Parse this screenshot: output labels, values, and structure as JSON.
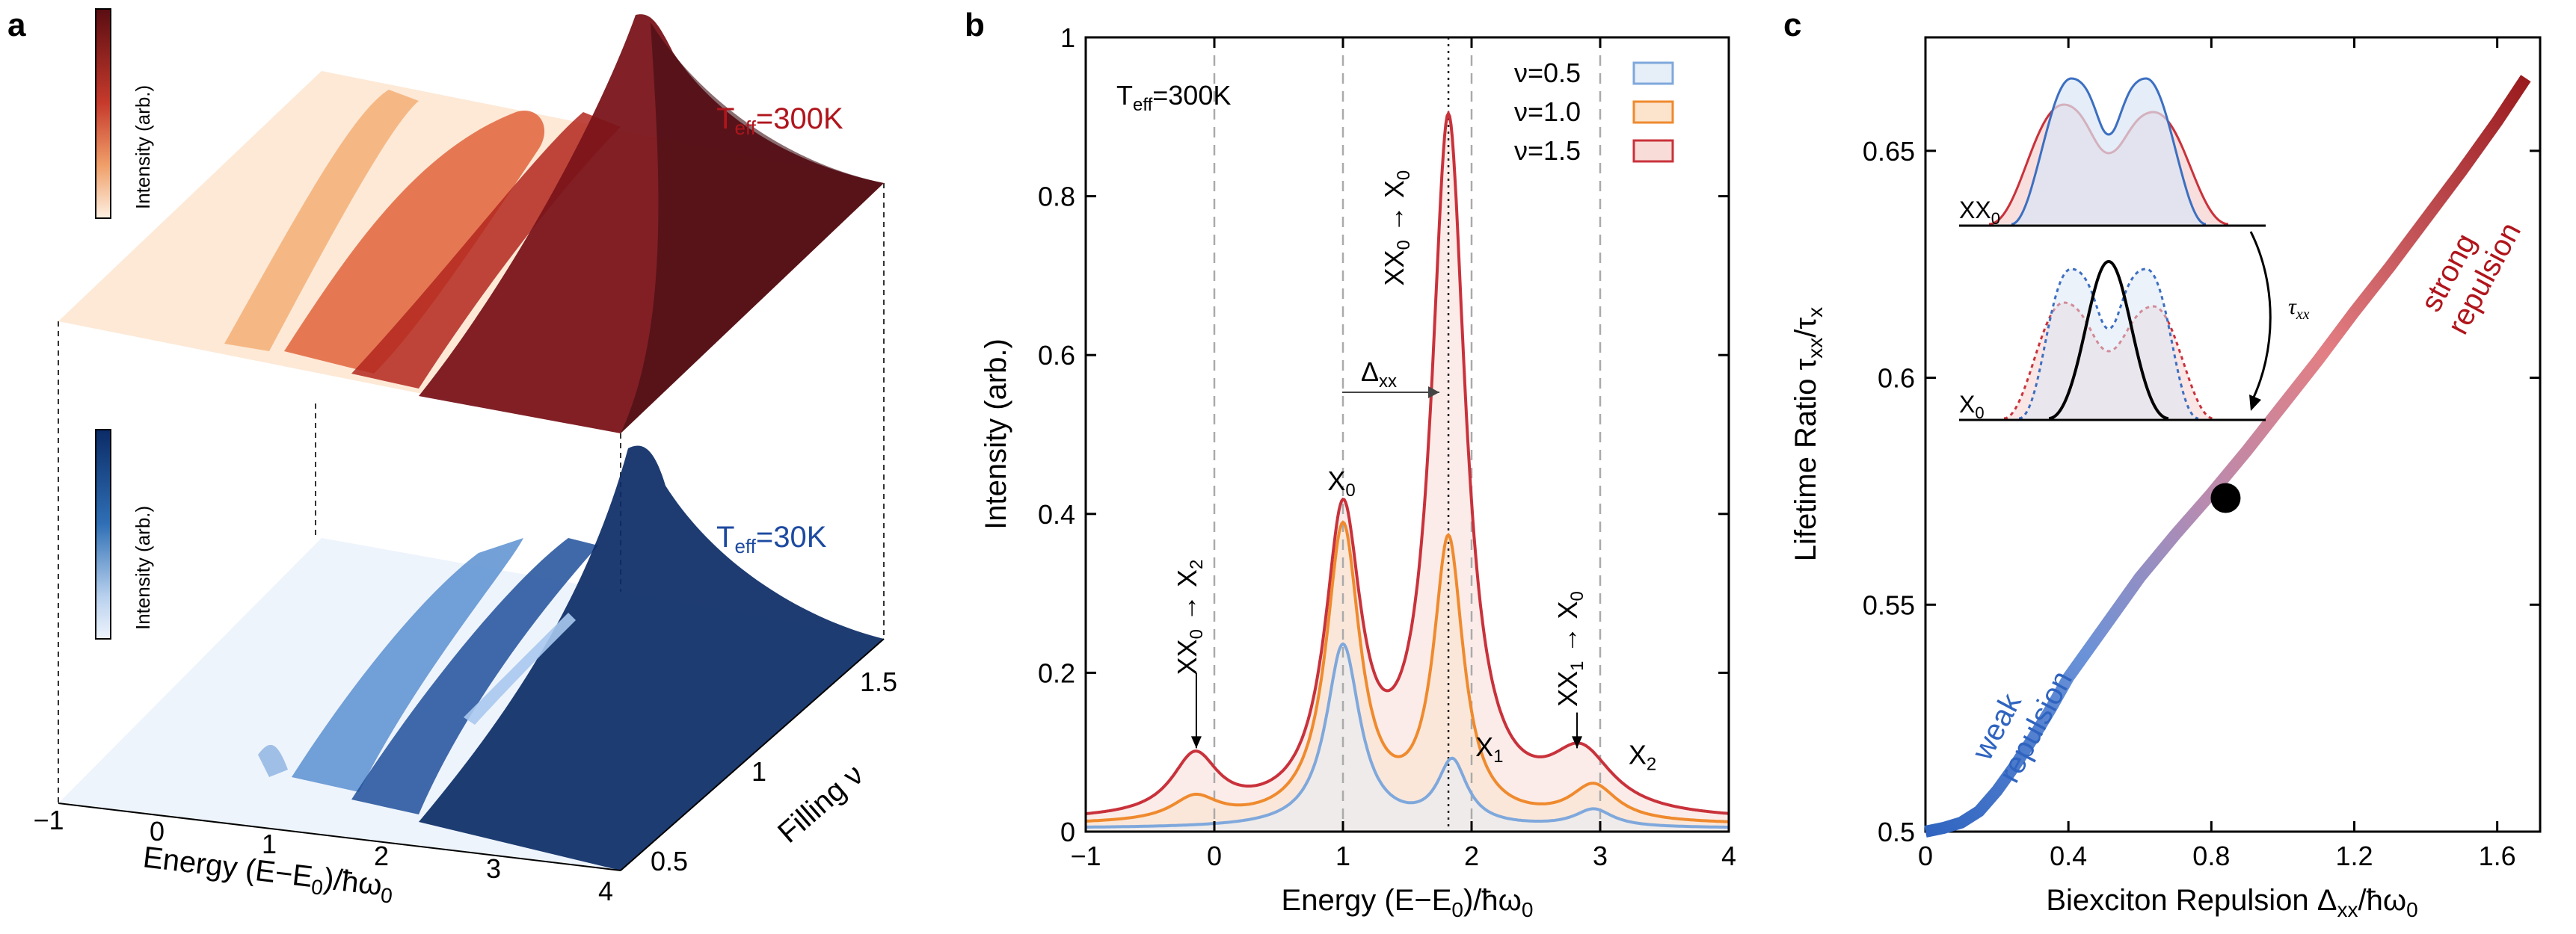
{
  "chart_data": [
    {
      "panel": "a",
      "type": "surface",
      "surfaces": [
        {
          "name": "hot",
          "colorbar_label": "Intensity (arb.)",
          "temperature_label": "T",
          "temperature_sub": "eff",
          "temperature_value": "=300K",
          "color_high": "#5a0d12",
          "color_mid": "#c63a2c",
          "color_low": "#fdf0e2"
        },
        {
          "name": "cold",
          "colorbar_label": "Intensity (arb.)",
          "temperature_label": "T",
          "temperature_sub": "eff",
          "temperature_value": "=30K",
          "color_high": "#0b2b66",
          "color_mid": "#2f6fb5",
          "color_low": "#eef4fc"
        }
      ],
      "x_label_pre": "Energy (E−E",
      "x_label_sub0": "0",
      "x_label_mid": ")/ħω",
      "x_label_sub1": "0",
      "x_ticks": [
        "−1",
        "0",
        "1",
        "2",
        "3",
        "4"
      ],
      "y_label": "Filling ν",
      "y_ticks": [
        "0.5",
        "1",
        "1.5"
      ]
    },
    {
      "panel": "b",
      "type": "line",
      "title": "",
      "xlabel_pre": "Energy (E−E",
      "xlabel_sub0": "0",
      "xlabel_mid": ")/ħω",
      "xlabel_sub1": "0",
      "ylabel": "Intensity (arb.)",
      "xlim": [
        -1,
        4
      ],
      "ylim": [
        0,
        1
      ],
      "x_ticks": [
        -1,
        0,
        1,
        2,
        3,
        4
      ],
      "x_tick_labels": [
        "−1",
        "0",
        "1",
        "2",
        "3",
        "4"
      ],
      "y_ticks": [
        0,
        0.2,
        0.4,
        0.6,
        0.8,
        1
      ],
      "y_tick_labels": [
        "0",
        "0.2",
        "0.4",
        "0.6",
        "0.8",
        "1"
      ],
      "temperature_label": "T",
      "temperature_sub": "eff",
      "temperature_value": "=300K",
      "vlines_dashed": [
        0,
        1,
        2,
        3
      ],
      "vline_dotted": 1.82,
      "series": [
        {
          "name": "ν=0.5",
          "color": "#7fa8dc",
          "fill": "#e6eef8",
          "peaks": [
            [
              1.0,
              0.23,
              0.16
            ],
            [
              1.85,
              0.08,
              0.14
            ],
            [
              2.95,
              0.022,
              0.18
            ]
          ],
          "baseline": 0.004
        },
        {
          "name": "ν=1.0",
          "color": "#ef8a2e",
          "fill": "#fbe3cc",
          "peaks": [
            [
              -0.15,
              0.03,
              0.22
            ],
            [
              1.0,
              0.37,
              0.16
            ],
            [
              1.82,
              0.35,
              0.14
            ],
            [
              2.95,
              0.045,
              0.22
            ]
          ],
          "baseline": 0.008
        },
        {
          "name": "ν=1.5",
          "color": "#c9323b",
          "fill": "#f8dcd7",
          "peaks": [
            [
              -0.15,
              0.075,
              0.22
            ],
            [
              1.0,
              0.37,
              0.17
            ],
            [
              1.82,
              0.87,
              0.16
            ],
            [
              2.85,
              0.075,
              0.3
            ]
          ],
          "baseline": 0.012
        }
      ],
      "peak_labels": [
        {
          "text": "X",
          "sub": "0",
          "x": 0.88,
          "y": 0.43
        },
        {
          "text": "X",
          "sub": "1",
          "x": 2.03,
          "y": 0.095
        },
        {
          "text": "X",
          "sub": "2",
          "x": 3.22,
          "y": 0.085
        }
      ],
      "transition_labels": [
        {
          "from": "XX",
          "from_sub": "0",
          "arrow": "→",
          "to": "X",
          "to_sub": "2",
          "x": -0.14,
          "y": 0.27
        },
        {
          "from": "XX",
          "from_sub": "0",
          "arrow": "→",
          "to": "X",
          "to_sub": "0",
          "x": 1.47,
          "y": 0.76
        },
        {
          "from": "XX",
          "from_sub": "1",
          "arrow": "→",
          "to": "X",
          "to_sub": "0",
          "x": 2.82,
          "y": 0.23
        }
      ],
      "delta_label": "Δ",
      "delta_sub": "xx"
    },
    {
      "panel": "c",
      "type": "line",
      "xlabel_pre": "Biexciton Repulsion Δ",
      "xlabel_sub": "xx",
      "xlabel_post": "/ħω",
      "xlabel_sub2": "0",
      "ylabel_pre": "Lifetime Ratio τ",
      "ylabel_sub": "xx",
      "ylabel_mid": "/τ",
      "ylabel_sub2": "x",
      "xlim": [
        0,
        1.72
      ],
      "ylim": [
        0.5,
        0.675
      ],
      "x_ticks": [
        0,
        0.4,
        0.8,
        1.2,
        1.6
      ],
      "x_tick_labels": [
        "0",
        "0.4",
        "0.8",
        "1.2",
        "1.6"
      ],
      "y_ticks": [
        0.5,
        0.55,
        0.6,
        0.65
      ],
      "y_tick_labels": [
        "0.5",
        "0.55",
        "0.6",
        "0.65"
      ],
      "x": [
        0,
        0.05,
        0.1,
        0.15,
        0.2,
        0.25,
        0.3,
        0.35,
        0.4,
        0.5,
        0.6,
        0.7,
        0.8,
        0.9,
        1.0,
        1.1,
        1.2,
        1.3,
        1.4,
        1.5,
        1.6,
        1.68
      ],
      "y": [
        0.5,
        0.5008,
        0.502,
        0.5045,
        0.509,
        0.5145,
        0.5205,
        0.527,
        0.534,
        0.545,
        0.556,
        0.5655,
        0.5745,
        0.584,
        0.594,
        0.604,
        0.6145,
        0.6245,
        0.635,
        0.6455,
        0.6565,
        0.666
      ],
      "marker": {
        "x": 0.84,
        "y": 0.5735
      },
      "color_low": "#2f64c0",
      "color_high": "#9a1b1e",
      "annotation_weak": [
        "weak",
        "repulsion"
      ],
      "annotation_strong": [
        "strong",
        "repulsion"
      ],
      "inset": {
        "upper_label": "XX",
        "upper_sub": "0",
        "lower_label": "X",
        "lower_sub": "0",
        "arrow_label": "τ",
        "arrow_sub": "xx"
      }
    }
  ],
  "panel_labels": [
    "a",
    "b",
    "c"
  ]
}
